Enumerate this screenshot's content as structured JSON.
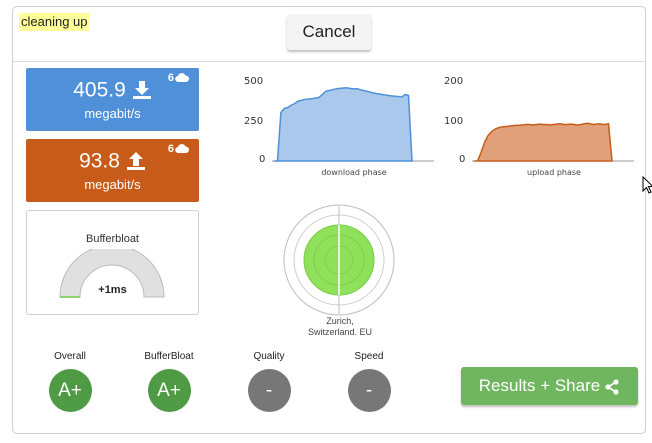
{
  "status_text": "cleaning up",
  "cancel_label": "Cancel",
  "download": {
    "value": "405.9",
    "unit": "megabit/s",
    "connections": "6",
    "color": "#4f90d8"
  },
  "upload": {
    "value": "93.8",
    "unit": "megabit/s",
    "connections": "6",
    "color": "#c75c1a"
  },
  "bufferbloat": {
    "title": "Bufferbloat",
    "value": "+1ms"
  },
  "server": {
    "line1": "Zurich,",
    "line2": "Switzerland. EU"
  },
  "grades": [
    {
      "label": "Overall",
      "grade": "A+",
      "color": "#4e9a45"
    },
    {
      "label": "BufferBloat",
      "grade": "A+",
      "color": "#4e9a45"
    },
    {
      "label": "Quality",
      "grade": "-",
      "color": "#777777"
    },
    {
      "label": "Speed",
      "grade": "-",
      "color": "#777777"
    }
  ],
  "share_label": "Results + Share",
  "chart_data": [
    {
      "type": "area",
      "title": "download phase",
      "yticks": [
        "500",
        "250",
        "0"
      ],
      "ylim": [
        0,
        500
      ],
      "x": [
        0,
        1,
        2,
        3,
        4,
        5,
        6,
        7,
        8,
        9,
        10,
        11,
        12,
        13,
        14,
        15,
        16,
        17,
        18,
        19,
        20,
        21,
        22,
        23,
        24,
        25,
        26,
        27,
        28,
        29,
        30,
        31,
        32,
        33,
        34,
        35,
        36,
        37,
        38,
        39,
        40
      ],
      "values": [
        0,
        0,
        300,
        325,
        330,
        345,
        355,
        370,
        375,
        380,
        382,
        385,
        388,
        392,
        410,
        430,
        435,
        440,
        445,
        448,
        450,
        452,
        448,
        445,
        447,
        440,
        435,
        430,
        425,
        420,
        415,
        412,
        408,
        405,
        402,
        400,
        398,
        395,
        410,
        405,
        0
      ],
      "color": "#4f90d8"
    },
    {
      "type": "area",
      "title": "upload phase",
      "yticks": [
        "200",
        "100",
        "0"
      ],
      "ylim": [
        0,
        200
      ],
      "x": [
        0,
        1,
        2,
        3,
        4,
        5,
        6,
        7,
        8,
        9,
        10,
        11,
        12,
        13,
        14,
        15,
        16,
        17,
        18,
        19,
        20,
        21,
        22,
        23,
        24,
        25,
        26,
        27,
        28,
        29,
        30,
        31,
        32,
        33,
        34,
        35,
        36,
        37,
        38,
        39,
        40
      ],
      "values": [
        0,
        0,
        20,
        45,
        62,
        72,
        78,
        82,
        84,
        85,
        86,
        87,
        88,
        88,
        89,
        90,
        90,
        89,
        90,
        91,
        90,
        90,
        89,
        90,
        91,
        92,
        90,
        90,
        91,
        90,
        89,
        90,
        92,
        93,
        91,
        90,
        92,
        91,
        90,
        92,
        0
      ],
      "color": "#c75c1a"
    }
  ]
}
